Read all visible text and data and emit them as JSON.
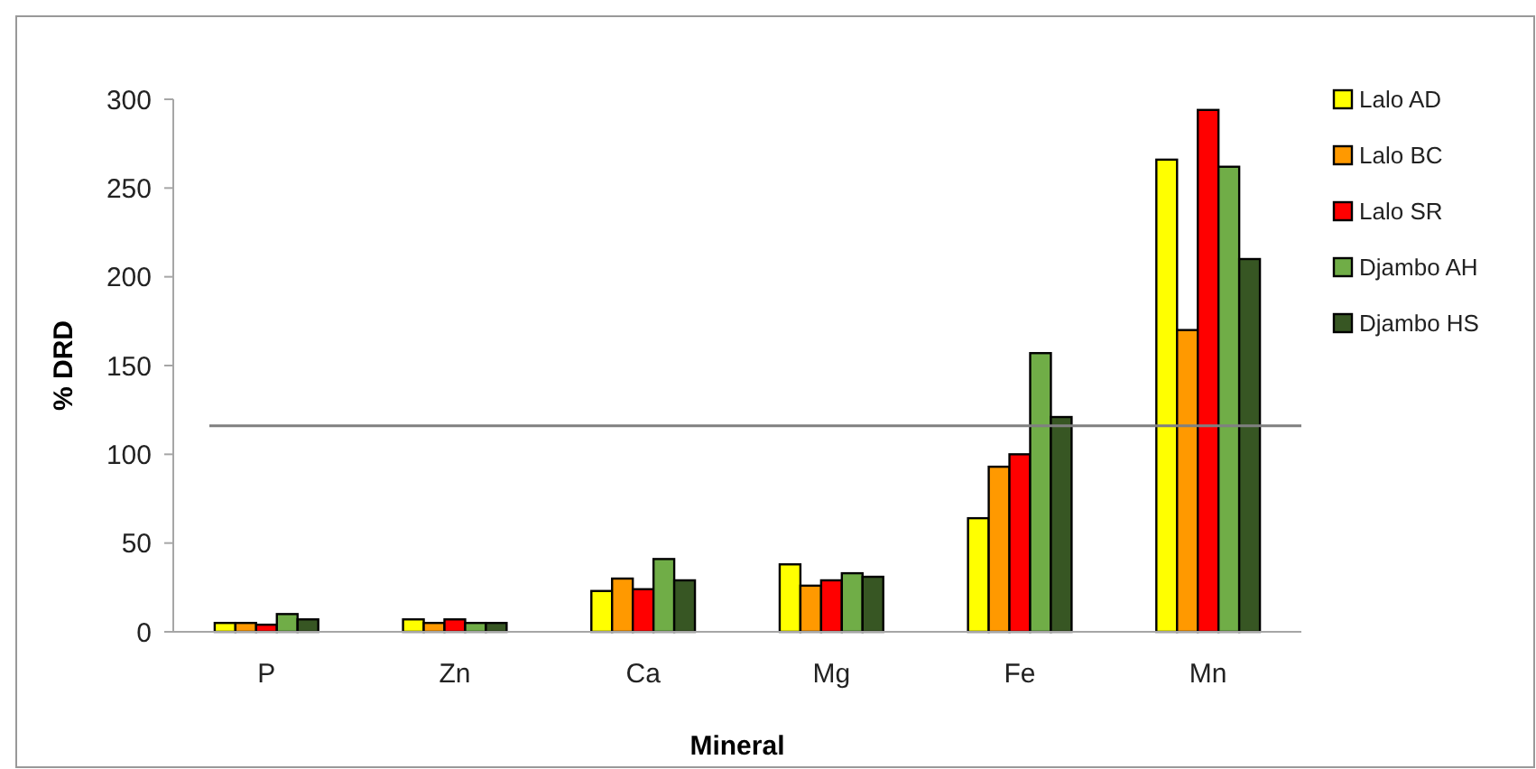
{
  "chart_data": {
    "type": "bar",
    "xlabel": "Mineral",
    "ylabel": "% DRD",
    "categories": [
      "P",
      "Zn",
      "Ca",
      "Mg",
      "Fe",
      "Mn"
    ],
    "series": [
      {
        "name": "Lalo AD",
        "color": "#ffff00",
        "values": [
          5,
          7,
          23,
          38,
          64,
          266
        ]
      },
      {
        "name": "Lalo BC",
        "color": "#ff9900",
        "values": [
          5,
          5,
          30,
          26,
          93,
          170
        ]
      },
      {
        "name": "Lalo SR",
        "color": "#ff0000",
        "values": [
          4,
          7,
          24,
          29,
          100,
          294
        ]
      },
      {
        "name": "Djambo AH",
        "color": "#70ad47",
        "values": [
          10,
          5,
          41,
          33,
          157,
          262
        ]
      },
      {
        "name": "Djambo HS",
        "color": "#375623",
        "values": [
          7,
          5,
          29,
          31,
          121,
          210
        ]
      }
    ],
    "ylim": [
      0,
      300
    ],
    "yticks": [
      0,
      50,
      100,
      150,
      200,
      250,
      300
    ],
    "grid": false,
    "legend": "right",
    "ref_lines": [
      {
        "axis": "y",
        "value": 116,
        "color": "#808080"
      }
    ]
  }
}
